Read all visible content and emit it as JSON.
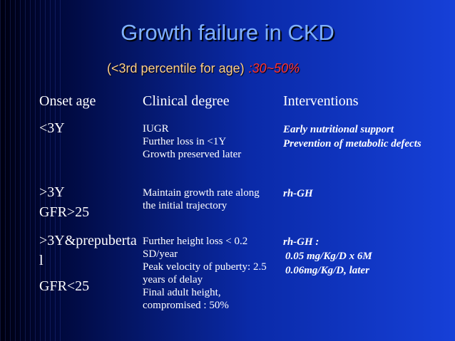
{
  "title": "Growth failure in CKD",
  "subtitle": {
    "text": "(<3rd percentile for age)",
    "highlight": ":30~50%"
  },
  "table": {
    "header": [
      "Onset age",
      "Clinical degree",
      "Interventions"
    ],
    "rows": [
      [
        [
          "<3Y"
        ],
        [
          "IUGR",
          "Further loss in <1Y",
          "Growth preserved later"
        ],
        [
          "Early nutritional support",
          "Prevention of metabolic defects"
        ]
      ],
      [
        [
          ">3Y",
          "GFR>25"
        ],
        [
          "Maintain growth rate along the initial trajectory"
        ],
        [
          "rh-GH"
        ]
      ],
      [
        [
          ">3Y&prepubertal",
          "GFR<25"
        ],
        [
          "Further height loss < 0.2 SD/year",
          "Peak velocity of puberty: 2.5 years of delay",
          "Final adult height, compromised : 50%"
        ],
        [
          "rh-GH :",
          "0.05 mg/Kg/D x 6M",
          "0.06mg/Kg/D, later"
        ]
      ]
    ]
  }
}
